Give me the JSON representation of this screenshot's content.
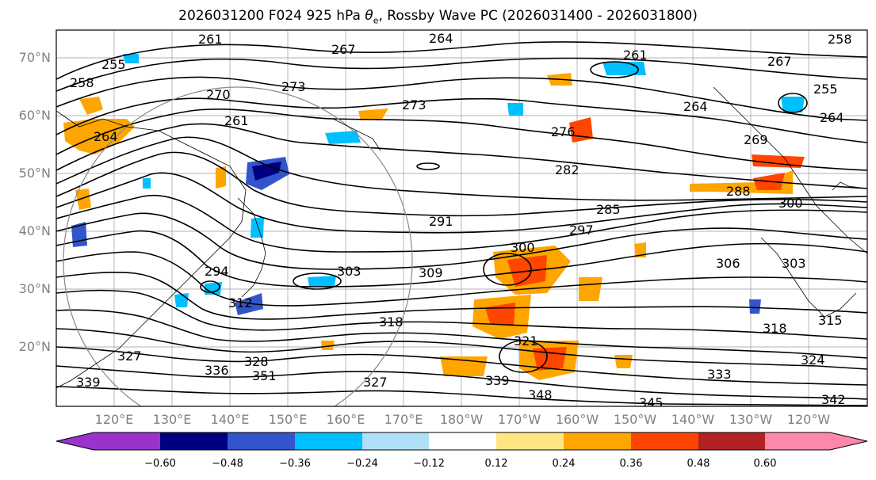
{
  "figure": {
    "title_main": "2026031200 F024 925 hPa ",
    "title_sym": "θ",
    "title_sub": "e",
    "title_rest": ", Rossby Wave PC (2026031400 - 2026031800)"
  },
  "axes": {
    "lat_labels": [
      "70°N",
      "60°N",
      "50°N",
      "40°N",
      "30°N",
      "20°N"
    ],
    "lon_labels": [
      "120°E",
      "130°E",
      "140°E",
      "150°E",
      "160°E",
      "170°E",
      "180°W",
      "170°W",
      "160°W",
      "150°W",
      "140°W",
      "130°W",
      "120°W"
    ]
  },
  "contour_labels": [
    "264",
    "261",
    "267",
    "255",
    "258",
    "270",
    "273",
    "273",
    "261",
    "264",
    "276",
    "282",
    "261",
    "267",
    "255",
    "258",
    "264",
    "269",
    "291",
    "285",
    "297",
    "288",
    "300",
    "300",
    "303",
    "306",
    "309",
    "303",
    "294",
    "312",
    "318",
    "321",
    "327",
    "336",
    "328",
    "351",
    "339",
    "333",
    "324",
    "339",
    "348",
    "345",
    "342",
    "315",
    "318",
    "327",
    "264"
  ],
  "colorbar": {
    "ticks": [
      "−0.60",
      "−0.48",
      "−0.36",
      "−0.24",
      "−0.12",
      "0.12",
      "0.24",
      "0.36",
      "0.48",
      "0.60"
    ],
    "colors": [
      "#9933cc",
      "#000080",
      "#3355cc",
      "#00bfff",
      "#b0e0f8",
      "#ffffff",
      "#ffe680",
      "#ffa500",
      "#ff4500",
      "#b22222",
      "#ff88aa"
    ]
  }
}
